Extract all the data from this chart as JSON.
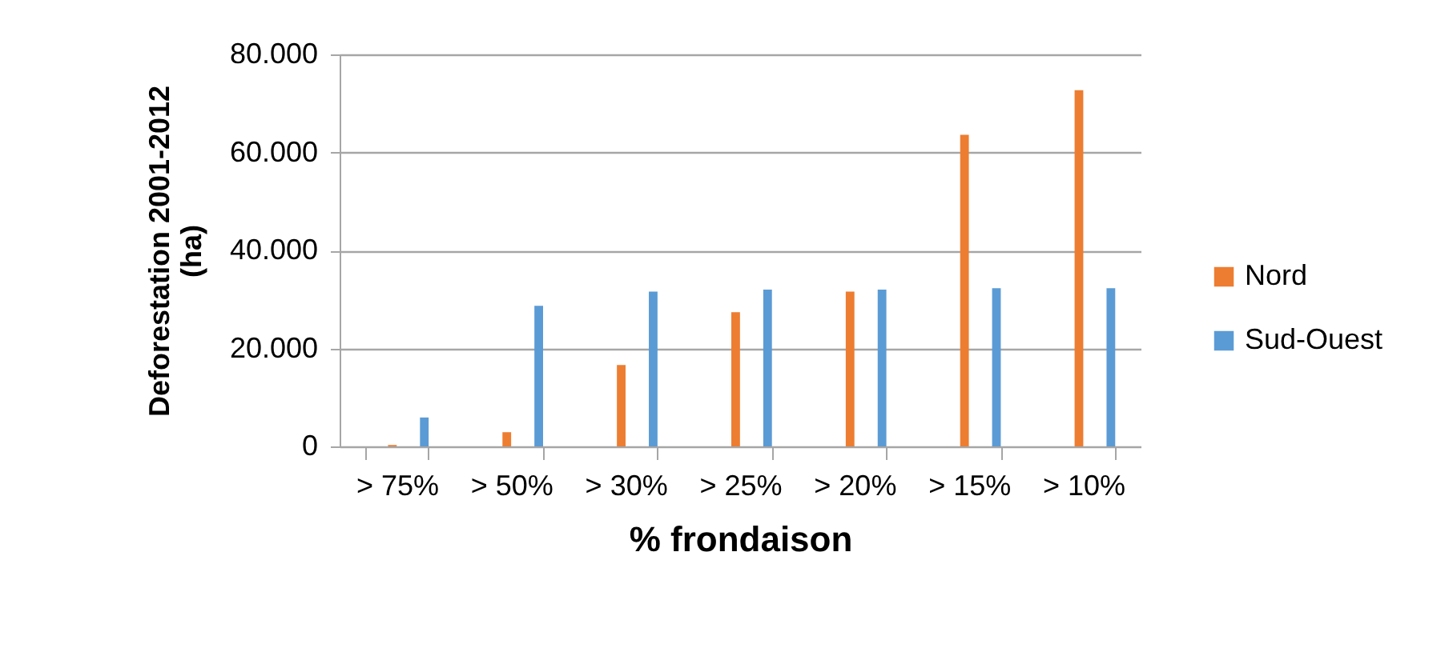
{
  "chart_data": {
    "type": "bar",
    "xlabel": "% frondaison",
    "ylabel": "Deforestation 2001-2012 (ha)",
    "categories": [
      "> 75%",
      "> 50%",
      "> 30%",
      "> 25%",
      "> 20%",
      "> 15%",
      "> 10%"
    ],
    "series": [
      {
        "name": "Nord",
        "color": "#ed7d31",
        "values": [
          300,
          2900,
          16600,
          27400,
          31600,
          63600,
          72700
        ]
      },
      {
        "name": "Sud-Ouest",
        "color": "#5b9bd5",
        "values": [
          5900,
          28700,
          31600,
          32000,
          32000,
          32300,
          32300
        ]
      }
    ],
    "ylim": [
      0,
      80000
    ],
    "yticks": [
      {
        "value": 0,
        "label": "0"
      },
      {
        "value": 20000,
        "label": "20.000"
      },
      {
        "value": 40000,
        "label": "40.000"
      },
      {
        "value": 60000,
        "label": "60.000"
      },
      {
        "value": 80000,
        "label": "80.000"
      }
    ],
    "grid": "y",
    "legend": "right"
  }
}
